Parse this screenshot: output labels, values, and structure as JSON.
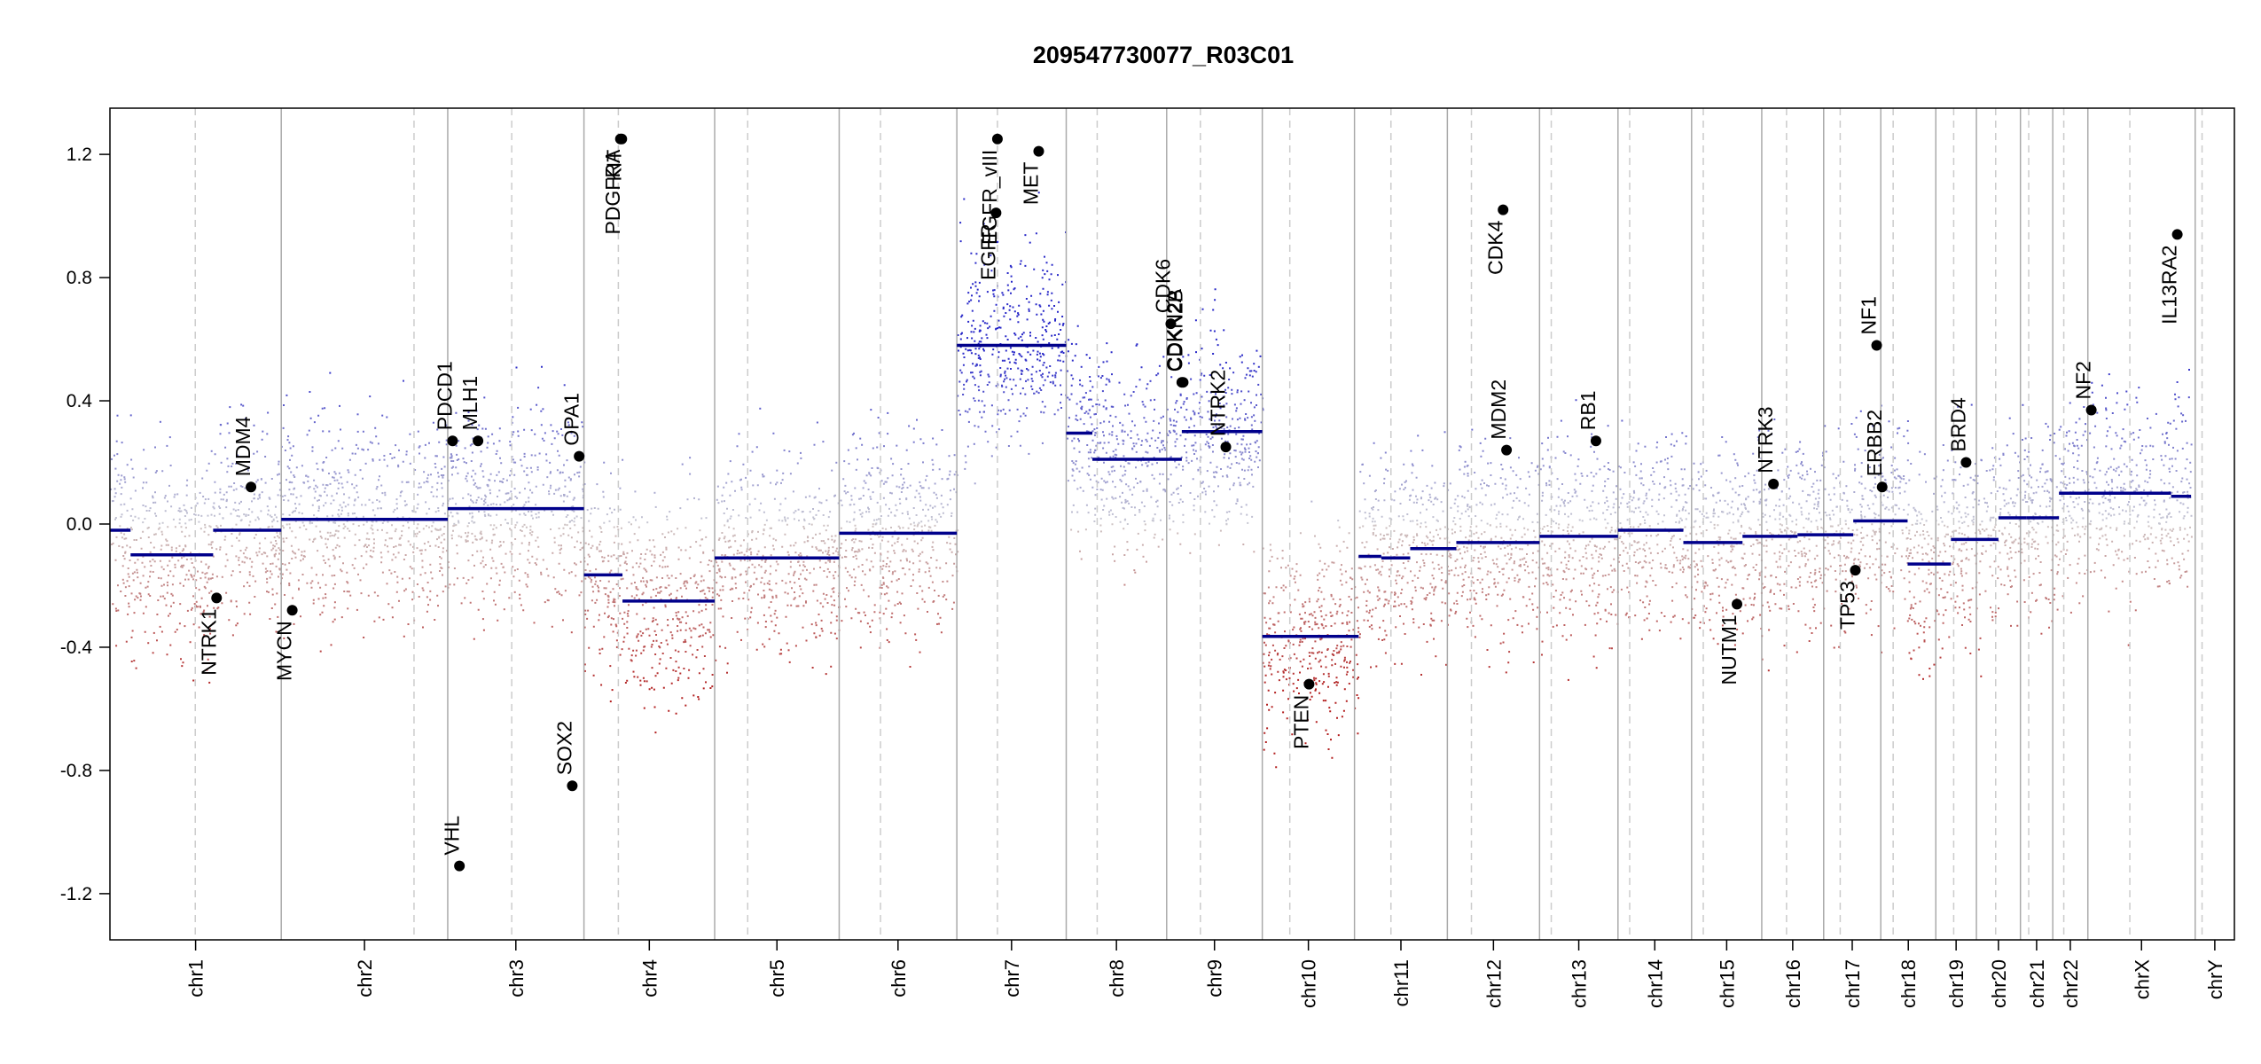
{
  "chart_data": {
    "type": "scatter",
    "title": "209547730077_R03C01",
    "xlabel": "",
    "ylabel": "",
    "ylim": [
      -1.35,
      1.35
    ],
    "yticks": [
      -1.2,
      -0.8,
      -0.4,
      0.0,
      0.4,
      0.8,
      1.2
    ],
    "ytick_labels": [
      "-1.2",
      "-0.8",
      "-0.4",
      "0.0",
      "0.4",
      "0.8",
      "1.2"
    ],
    "colors": {
      "gain": "#2b2bc8",
      "loss": "#b22222",
      "neutral": "#bbbbbb",
      "segment": "#00008b",
      "gene_point": "#000000",
      "boundary": "#aaaaaa",
      "centromere": "#cccccc"
    },
    "chromosomes": [
      {
        "name": "chr1",
        "start": 0,
        "end": 2.49,
        "centromere": 1.24
      },
      {
        "name": "chr2",
        "start": 2.49,
        "end": 4.91,
        "centromere": 4.42
      },
      {
        "name": "chr3",
        "start": 4.91,
        "end": 6.89,
        "centromere": 5.84
      },
      {
        "name": "chr4",
        "start": 6.89,
        "end": 8.79,
        "centromere": 7.39
      },
      {
        "name": "chr5",
        "start": 8.79,
        "end": 10.6,
        "centromere": 9.27
      },
      {
        "name": "chr6",
        "start": 10.6,
        "end": 12.31,
        "centromere": 11.2
      },
      {
        "name": "chr7",
        "start": 12.31,
        "end": 13.9,
        "centromere": 12.9
      },
      {
        "name": "chr8",
        "start": 13.9,
        "end": 15.36,
        "centromere": 14.35
      },
      {
        "name": "chr9",
        "start": 15.36,
        "end": 16.75,
        "centromere": 15.85
      },
      {
        "name": "chr10",
        "start": 16.75,
        "end": 18.09,
        "centromere": 17.15
      },
      {
        "name": "chr11",
        "start": 18.09,
        "end": 19.44,
        "centromere": 18.62
      },
      {
        "name": "chr12",
        "start": 19.44,
        "end": 20.78,
        "centromere": 19.79
      },
      {
        "name": "chr13",
        "start": 20.78,
        "end": 21.92,
        "centromere": 20.95
      },
      {
        "name": "chr14",
        "start": 21.92,
        "end": 22.99,
        "centromere": 22.09
      },
      {
        "name": "chr15",
        "start": 22.99,
        "end": 24.01,
        "centromere": 23.16
      },
      {
        "name": "chr16",
        "start": 24.01,
        "end": 24.91,
        "centromere": 24.37
      },
      {
        "name": "chr17",
        "start": 24.91,
        "end": 25.74,
        "centromere": 25.15
      },
      {
        "name": "chr18",
        "start": 25.74,
        "end": 26.54,
        "centromere": 25.92
      },
      {
        "name": "chr19",
        "start": 26.54,
        "end": 27.13,
        "centromere": 26.8
      },
      {
        "name": "chr20",
        "start": 27.13,
        "end": 27.77,
        "centromere": 27.41
      },
      {
        "name": "chr21",
        "start": 27.77,
        "end": 28.24,
        "centromere": 27.89
      },
      {
        "name": "chr22",
        "start": 28.24,
        "end": 28.75,
        "centromere": 28.4
      },
      {
        "name": "chrX",
        "start": 28.75,
        "end": 30.31,
        "centromere": 29.36
      },
      {
        "name": "chrY",
        "start": 30.31,
        "end": 30.88,
        "centromere": 30.41
      }
    ],
    "segments": [
      {
        "x0": 0.0,
        "x1": 0.3,
        "y": -0.02
      },
      {
        "x0": 0.3,
        "x1": 1.5,
        "y": -0.1
      },
      {
        "x0": 1.5,
        "x1": 2.49,
        "y": -0.02
      },
      {
        "x0": 2.49,
        "x1": 4.91,
        "y": 0.015
      },
      {
        "x0": 4.91,
        "x1": 6.89,
        "y": 0.05
      },
      {
        "x0": 6.89,
        "x1": 7.45,
        "y": -0.165
      },
      {
        "x0": 7.45,
        "x1": 8.79,
        "y": -0.25
      },
      {
        "x0": 8.79,
        "x1": 10.6,
        "y": -0.11
      },
      {
        "x0": 10.6,
        "x1": 12.31,
        "y": -0.03
      },
      {
        "x0": 12.31,
        "x1": 13.9,
        "y": 0.58
      },
      {
        "x0": 13.9,
        "x1": 14.28,
        "y": 0.295
      },
      {
        "x0": 14.28,
        "x1": 15.58,
        "y": 0.21
      },
      {
        "x0": 15.58,
        "x1": 16.75,
        "y": 0.3
      },
      {
        "x0": 16.75,
        "x1": 18.15,
        "y": -0.365
      },
      {
        "x0": 18.15,
        "x1": 18.48,
        "y": -0.105
      },
      {
        "x0": 18.48,
        "x1": 18.9,
        "y": -0.11
      },
      {
        "x0": 18.9,
        "x1": 19.57,
        "y": -0.08
      },
      {
        "x0": 19.57,
        "x1": 20.78,
        "y": -0.06
      },
      {
        "x0": 20.78,
        "x1": 21.92,
        "y": -0.04
      },
      {
        "x0": 21.92,
        "x1": 22.87,
        "y": -0.02
      },
      {
        "x0": 22.87,
        "x1": 23.73,
        "y": -0.06
      },
      {
        "x0": 23.73,
        "x1": 24.53,
        "y": -0.04
      },
      {
        "x0": 24.53,
        "x1": 25.34,
        "y": -0.035
      },
      {
        "x0": 25.34,
        "x1": 26.13,
        "y": 0.01
      },
      {
        "x0": 26.13,
        "x1": 26.76,
        "y": -0.13
      },
      {
        "x0": 26.76,
        "x1": 27.45,
        "y": -0.05
      },
      {
        "x0": 27.45,
        "x1": 27.86,
        "y": 0.02
      },
      {
        "x0": 27.86,
        "x1": 28.33,
        "y": 0.02
      },
      {
        "x0": 28.33,
        "x1": 29.96,
        "y": 0.1
      },
      {
        "x0": 29.96,
        "x1": 30.25,
        "y": 0.09
      }
    ],
    "genes": [
      {
        "name": "NTRK1",
        "x": 1.55,
        "y": -0.24,
        "side": "below"
      },
      {
        "name": "MDM4",
        "x": 2.05,
        "y": 0.12,
        "side": "above"
      },
      {
        "name": "MYCN",
        "x": 2.65,
        "y": -0.28,
        "side": "below"
      },
      {
        "name": "PDCD1",
        "x": 4.98,
        "y": 0.27,
        "side": "above"
      },
      {
        "name": "VHL",
        "x": 5.08,
        "y": -1.11,
        "side": "above"
      },
      {
        "name": "MLH1",
        "x": 5.35,
        "y": 0.27,
        "side": "above"
      },
      {
        "name": "SOX2",
        "x": 6.72,
        "y": -0.85,
        "side": "above"
      },
      {
        "name": "OPA1",
        "x": 6.82,
        "y": 0.22,
        "side": "above"
      },
      {
        "name": "PDGFRA",
        "x": 7.42,
        "y": 1.25,
        "side": "below"
      },
      {
        "name": "KIT",
        "x": 7.44,
        "y": 1.25,
        "side": "below"
      },
      {
        "name": "EGFR",
        "x": 12.88,
        "y": 1.01,
        "side": "below"
      },
      {
        "name": "EGFR_vIII",
        "x": 12.9,
        "y": 1.25,
        "side": "below"
      },
      {
        "name": "MET",
        "x": 13.5,
        "y": 1.21,
        "side": "below"
      },
      {
        "name": "CDK6",
        "x": 15.42,
        "y": 0.65,
        "side": "above"
      },
      {
        "name": "CDKN2A",
        "x": 15.58,
        "y": 0.46,
        "side": "above"
      },
      {
        "name": "CDKN2B",
        "x": 15.6,
        "y": 0.46,
        "side": "above"
      },
      {
        "name": "NTRK2",
        "x": 16.22,
        "y": 0.25,
        "side": "above"
      },
      {
        "name": "PTEN",
        "x": 17.43,
        "y": -0.52,
        "side": "below"
      },
      {
        "name": "CDK4",
        "x": 20.25,
        "y": 1.02,
        "side": "below"
      },
      {
        "name": "MDM2",
        "x": 20.3,
        "y": 0.24,
        "side": "above"
      },
      {
        "name": "RB1",
        "x": 21.6,
        "y": 0.27,
        "side": "above"
      },
      {
        "name": "NUTM1",
        "x": 23.65,
        "y": -0.26,
        "side": "below"
      },
      {
        "name": "NTRK3",
        "x": 24.18,
        "y": 0.13,
        "side": "above"
      },
      {
        "name": "TP53",
        "x": 25.37,
        "y": -0.15,
        "side": "below"
      },
      {
        "name": "NF1",
        "x": 25.68,
        "y": 0.58,
        "side": "above"
      },
      {
        "name": "ERBB2",
        "x": 25.76,
        "y": 0.12,
        "side": "above"
      },
      {
        "name": "BRD4",
        "x": 26.98,
        "y": 0.2,
        "side": "above"
      },
      {
        "name": "NF2",
        "x": 28.8,
        "y": 0.37,
        "side": "above"
      },
      {
        "name": "IL13RA2",
        "x": 30.05,
        "y": 0.94,
        "side": "below"
      }
    ]
  }
}
